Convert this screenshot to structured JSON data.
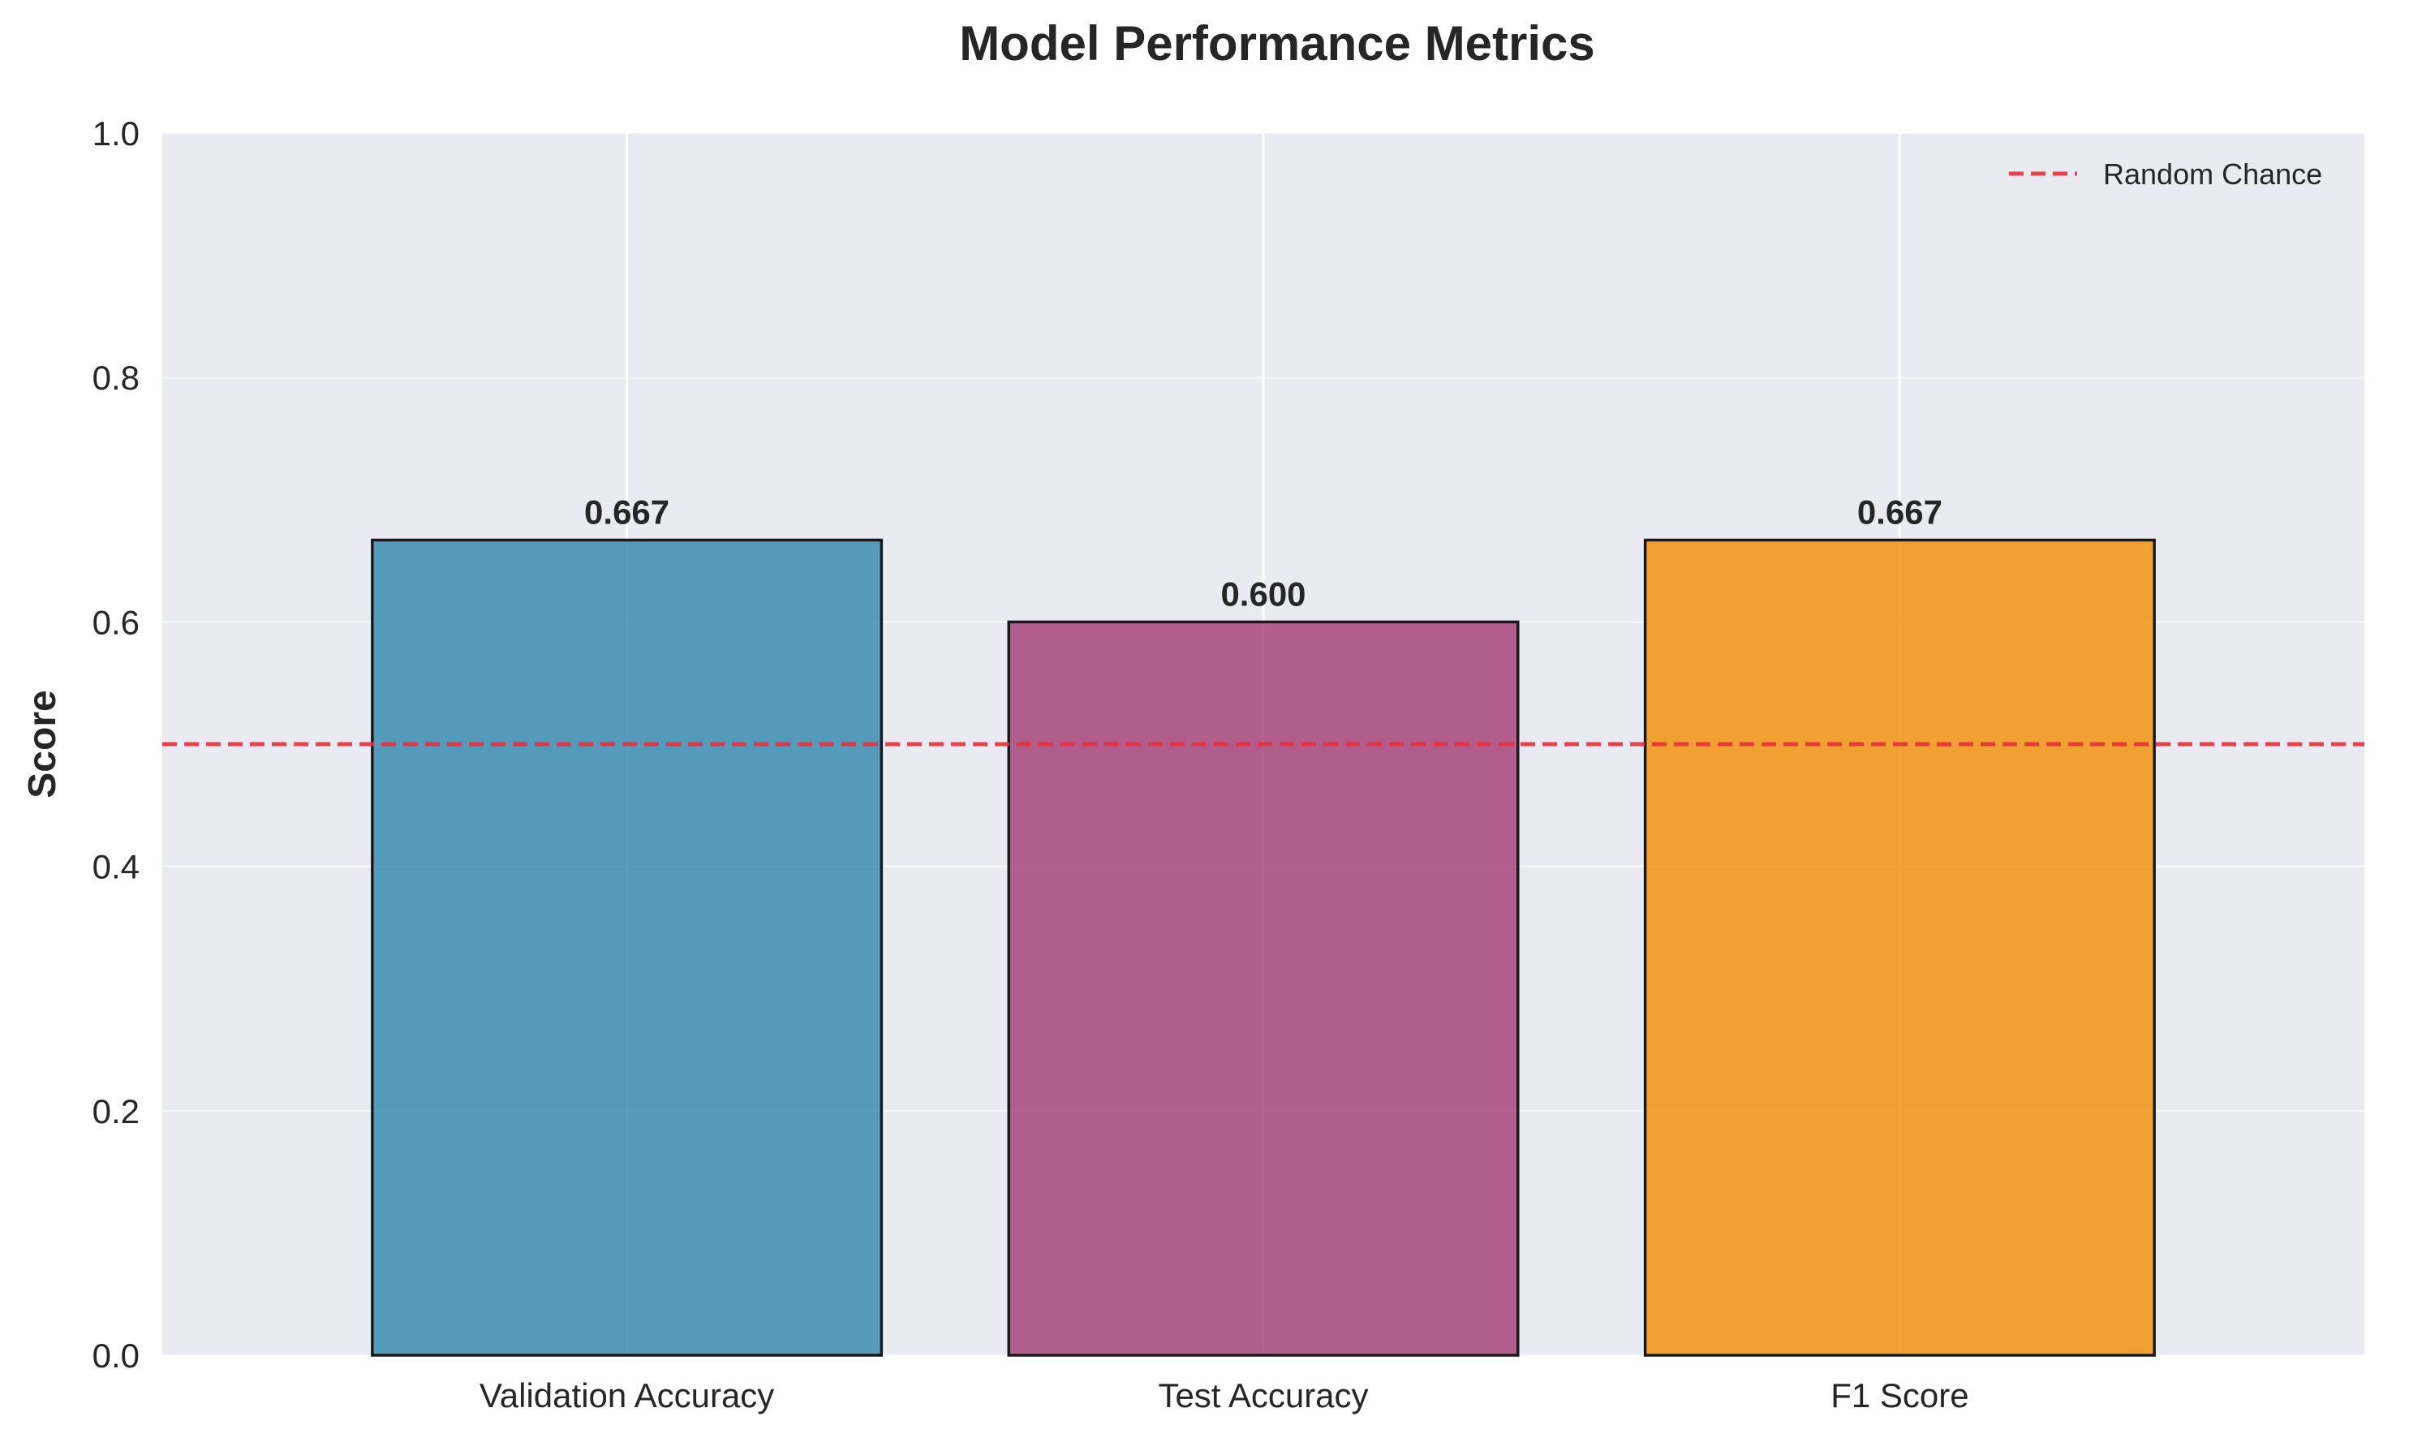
{
  "chart_data": {
    "type": "bar",
    "title": "Model Performance Metrics",
    "xlabel": "",
    "ylabel": "Score",
    "categories": [
      "Validation Accuracy",
      "Test Accuracy",
      "F1 Score"
    ],
    "values": [
      0.667,
      0.6,
      0.667
    ],
    "value_labels": [
      "0.667",
      "0.600",
      "0.667"
    ],
    "colors": [
      "#2E86AB",
      "#A23B72",
      "#F18F01"
    ],
    "ylim": [
      0,
      1.0
    ],
    "yticks": [
      0.0,
      0.2,
      0.4,
      0.6,
      0.8,
      1.0
    ],
    "ytick_labels": [
      "0.0",
      "0.2",
      "0.4",
      "0.6",
      "0.8",
      "1.0"
    ],
    "reference_line": {
      "y": 0.5,
      "label": "Random Chance",
      "color": "#E8303A",
      "style": "dashed"
    },
    "legend": {
      "position": "top-right",
      "entries": [
        "Random Chance"
      ]
    },
    "grid": true,
    "background": "#EAEAF2"
  }
}
